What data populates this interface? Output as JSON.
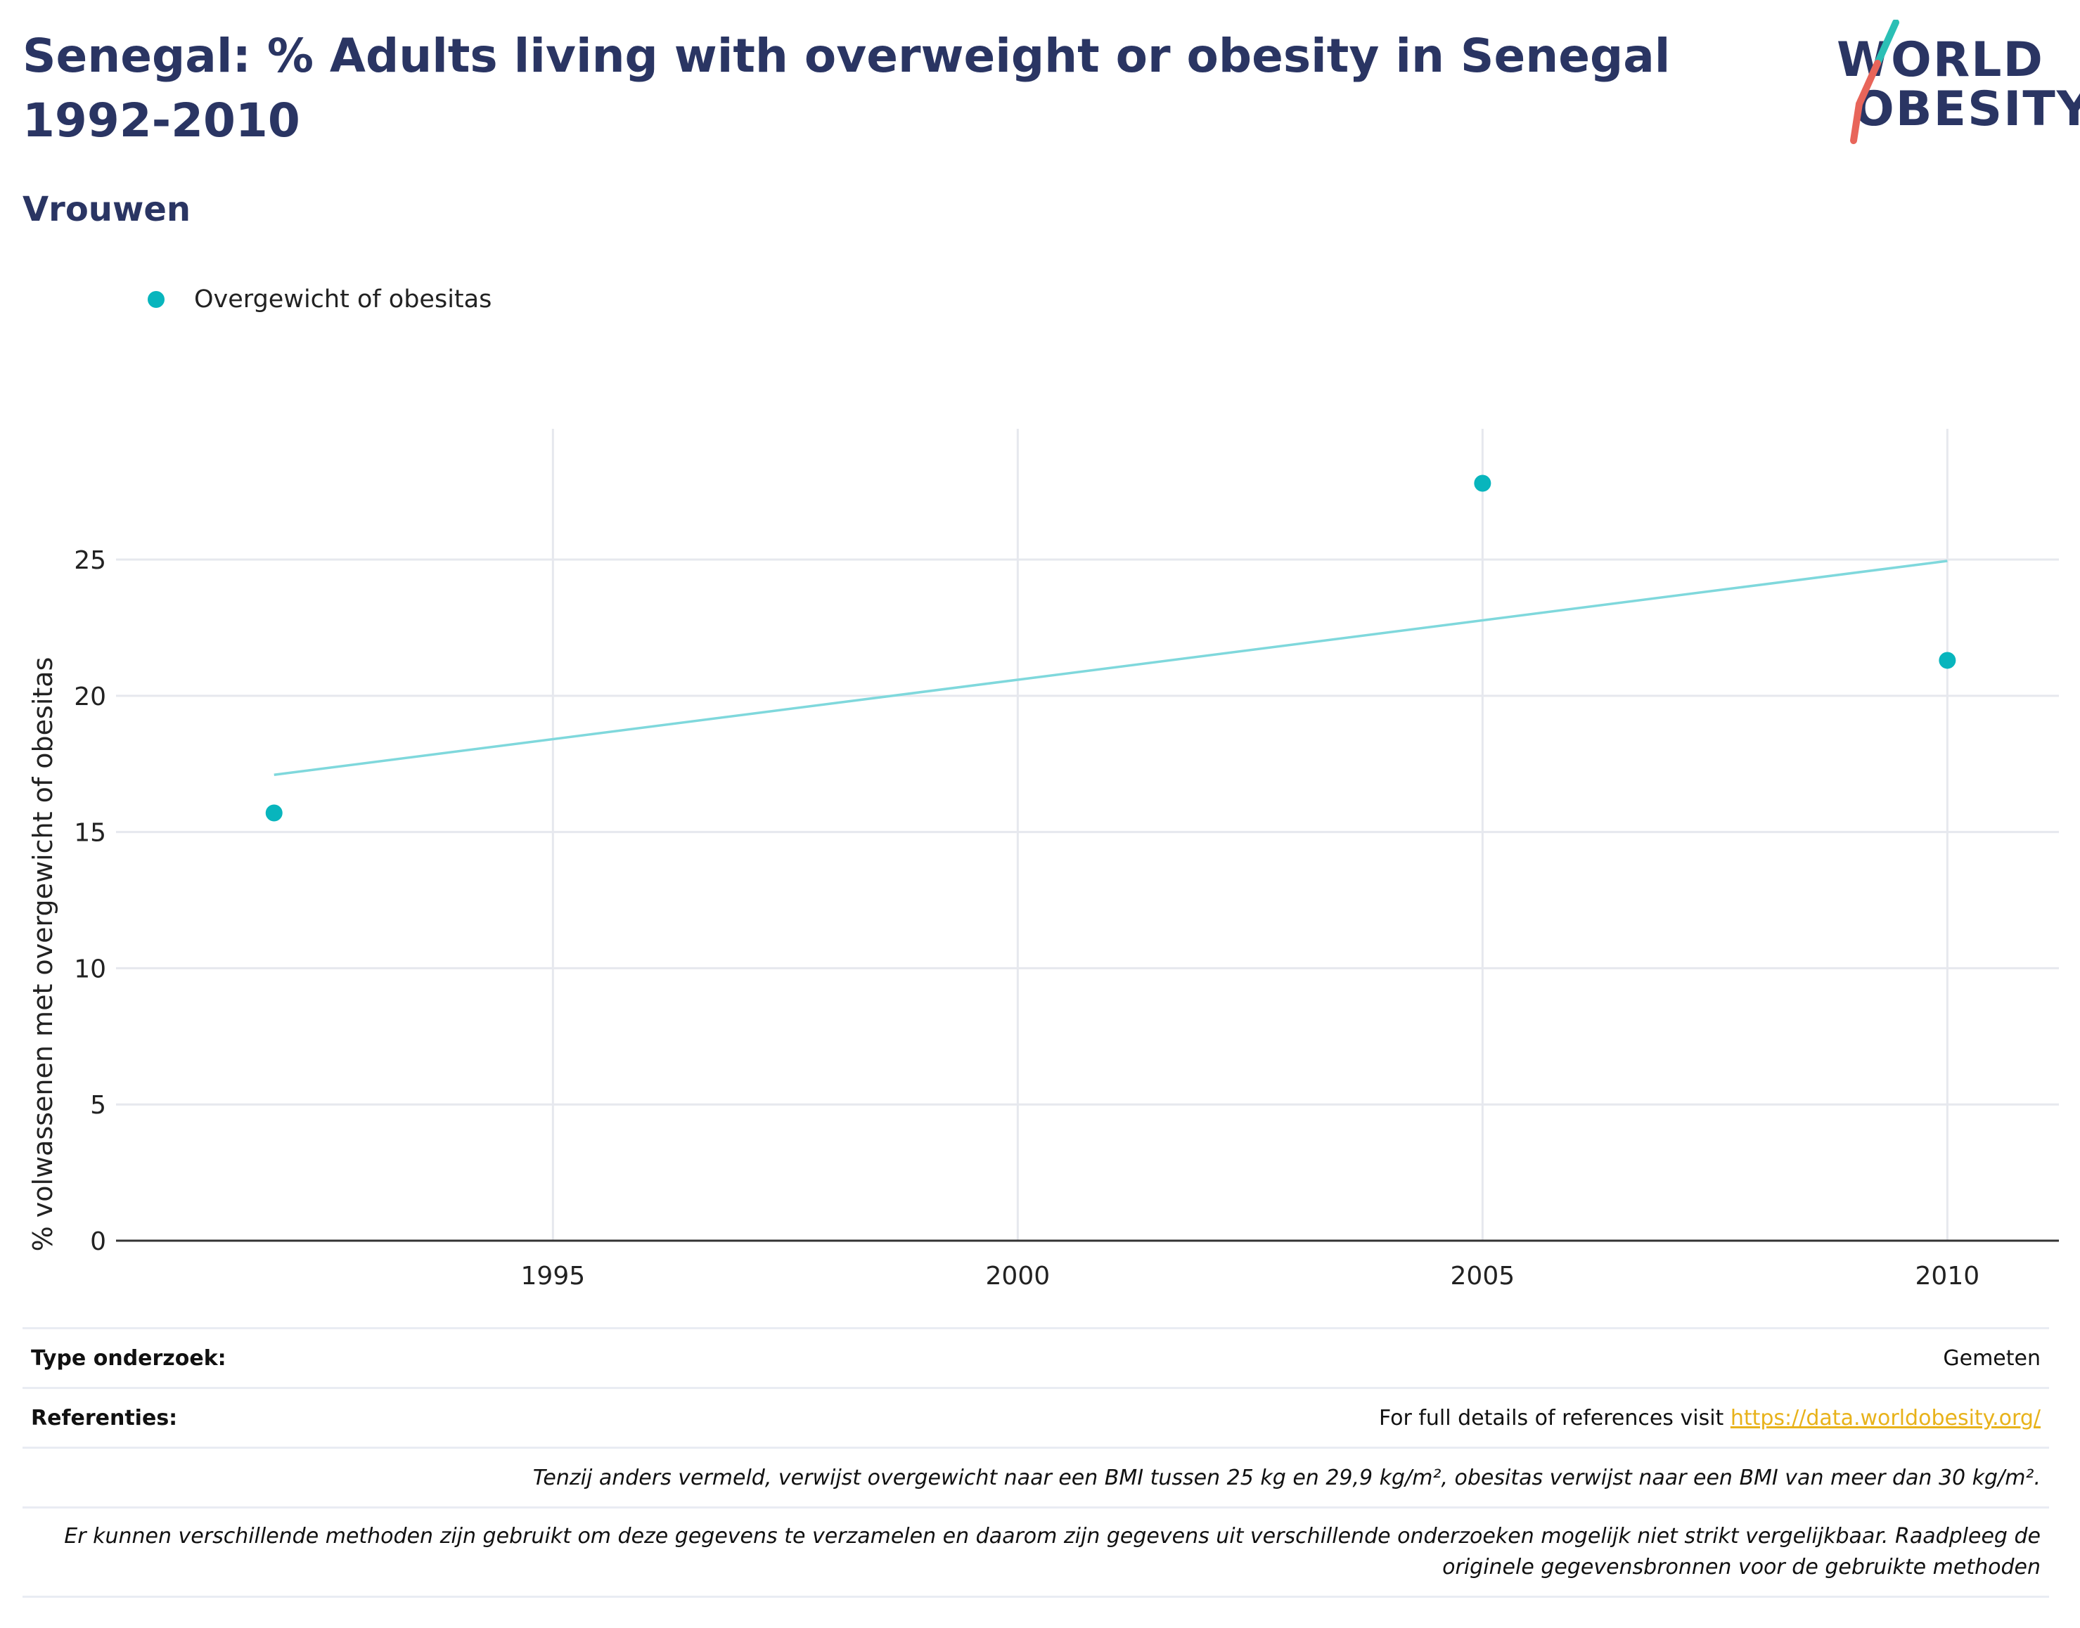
{
  "title": "Senegal: % Adults living with overweight or obesity in Senegal 1992-2010",
  "subtitle": "Vrouwen",
  "logo": {
    "line1": "WORLD",
    "line2": "OBESITY"
  },
  "legend": {
    "label": "Overgewicht of obesitas"
  },
  "colors": {
    "accent": "#08b5bd",
    "trend": "#7fd8dc",
    "title": "#2a3563",
    "link": "#e8b21a"
  },
  "chart_data": {
    "type": "scatter",
    "xlabel": "",
    "ylabel": "% volwassenen met overgewicht of obesitas",
    "xlim": [
      1990.3,
      2011.2
    ],
    "ylim": [
      0,
      29.8
    ],
    "x_ticks": [
      1995,
      2000,
      2005,
      2010
    ],
    "y_ticks": [
      0,
      5,
      10,
      15,
      20,
      25
    ],
    "grid": true,
    "legend_position": "top-left",
    "series": [
      {
        "name": "Overgewicht of obesitas",
        "x": [
          1992,
          2005,
          2010
        ],
        "y": [
          15.7,
          27.8,
          21.3
        ]
      }
    ],
    "trendline": {
      "x": [
        1992,
        2010
      ],
      "y": [
        17.1,
        24.95
      ]
    }
  },
  "footer": {
    "type_label": "Type onderzoek:",
    "type_value": "Gemeten",
    "ref_label": "Referenties:",
    "ref_text": "For full details of references visit ",
    "ref_link": "https://data.worldobesity.org/",
    "note1": "Tenzij anders vermeld, verwijst overgewicht naar een BMI tussen 25 kg en 29,9 kg/m², obesitas verwijst naar een BMI van meer dan 30 kg/m².",
    "note2": "Er kunnen verschillende methoden zijn gebruikt om deze gegevens te verzamelen en daarom zijn gegevens uit verschillende onderzoeken mogelijk niet strikt vergelijkbaar. Raadpleeg de originele gegevensbronnen voor de gebruikte methoden"
  }
}
